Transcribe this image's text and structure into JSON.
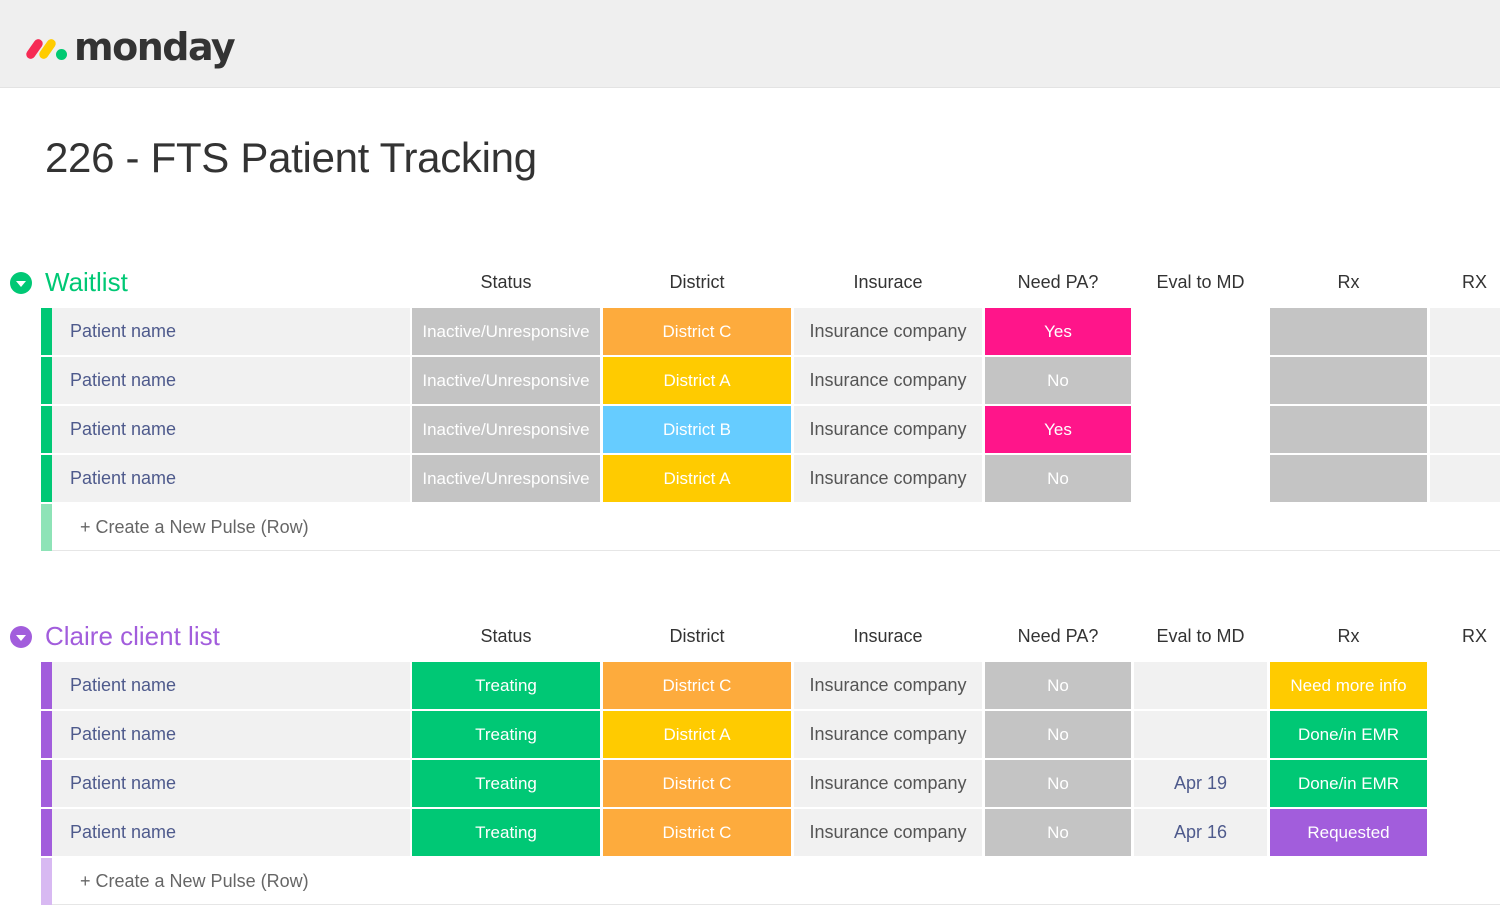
{
  "app": {
    "logo_text": "monday"
  },
  "board": {
    "title": "226 - FTS Patient Tracking"
  },
  "columns": {
    "status": "Status",
    "district": "District",
    "insurance": "Insurace",
    "need_pa": "Need PA?",
    "eval": "Eval to MD",
    "rx": "Rx",
    "rx2": "RX"
  },
  "colors": {
    "green": "#00c875",
    "purple": "#a25ddc",
    "gray": "#c4c4c4",
    "orange": "#fdab3d",
    "yellow": "#ffcb00",
    "blue": "#66ccff",
    "pink": "#ff158a",
    "light_purple": "#d8b9f2",
    "light_green": "#8ee3b7"
  },
  "groups": [
    {
      "name": "Waitlist",
      "color": "#00c875",
      "create_label": "+ Create a New Pulse (Row)",
      "rows": [
        {
          "name": "Patient name",
          "status": "Inactive/Unresponsive",
          "district": "District C",
          "insurance": "Insurance company",
          "need_pa": "Yes",
          "eval": "",
          "rx": ""
        },
        {
          "name": "Patient name",
          "status": "Inactive/Unresponsive",
          "district": "District A",
          "insurance": "Insurance company",
          "need_pa": "No",
          "eval": "",
          "rx": ""
        },
        {
          "name": "Patient name",
          "status": "Inactive/Unresponsive",
          "district": "District B",
          "insurance": "Insurance company",
          "need_pa": "Yes",
          "eval": "",
          "rx": ""
        },
        {
          "name": "Patient name",
          "status": "Inactive/Unresponsive",
          "district": "District A",
          "insurance": "Insurance company",
          "need_pa": "No",
          "eval": "",
          "rx": ""
        }
      ]
    },
    {
      "name": "Claire client list",
      "color": "#a25ddc",
      "create_label": "+ Create a New Pulse (Row)",
      "rows": [
        {
          "name": "Patient name",
          "status": "Treating",
          "district": "District C",
          "insurance": "Insurance company",
          "need_pa": "No",
          "eval": "",
          "rx": "Need more info"
        },
        {
          "name": "Patient name",
          "status": "Treating",
          "district": "District A",
          "insurance": "Insurance company",
          "need_pa": "No",
          "eval": "",
          "rx": "Done/in EMR"
        },
        {
          "name": "Patient name",
          "status": "Treating",
          "district": "District C",
          "insurance": "Insurance company",
          "need_pa": "No",
          "eval": "Apr 19",
          "rx": "Done/in EMR"
        },
        {
          "name": "Patient name",
          "status": "Treating",
          "district": "District C",
          "insurance": "Insurance company",
          "need_pa": "No",
          "eval": "Apr 16",
          "rx": "Requested"
        }
      ]
    }
  ]
}
